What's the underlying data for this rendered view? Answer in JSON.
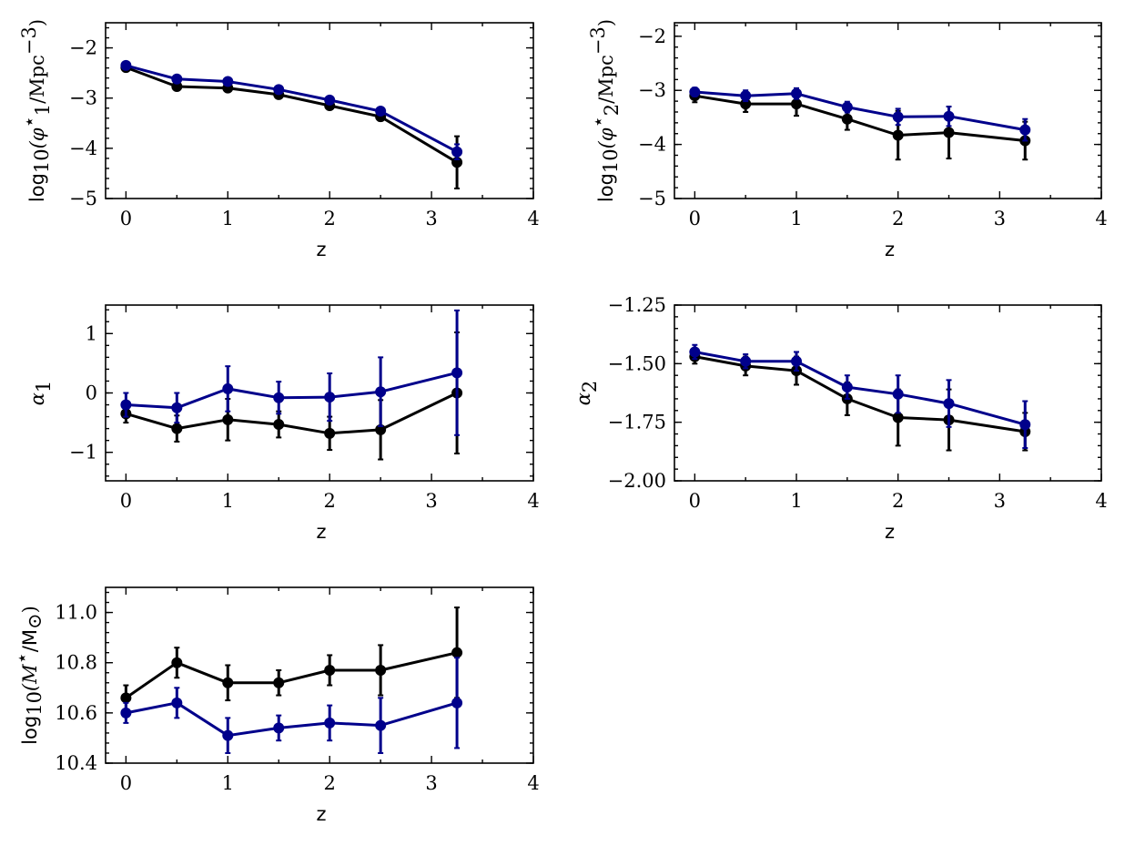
{
  "colors": {
    "series_black": "#000000",
    "series_blue": "#00008b"
  },
  "chart_data": [
    {
      "type": "line",
      "ylabel_parts": [
        "log",
        "10",
        "(φ",
        "⋆",
        "1",
        "/Mpc",
        "−3",
        ")"
      ],
      "xlabel": "z",
      "xlim": [
        -0.2,
        4
      ],
      "ylim": [
        -5,
        -1.5
      ],
      "xticks": [
        0,
        1,
        2,
        3,
        4
      ],
      "xtick_labels": [
        "0",
        "1",
        "2",
        "3",
        "4"
      ],
      "yticks": [
        -5,
        -4,
        -3,
        -2
      ],
      "ytick_labels": [
        "−5",
        "−4",
        "−3",
        "−2"
      ],
      "x": [
        0,
        0.5,
        1,
        1.5,
        2,
        2.5,
        3.25
      ],
      "series": [
        {
          "color": "#000000",
          "values": [
            -2.39,
            -2.77,
            -2.8,
            -2.93,
            -3.15,
            -3.37,
            -4.28
          ],
          "err": [
            0.06,
            0.05,
            0.05,
            0.05,
            0.07,
            0.08,
            0.52
          ]
        },
        {
          "color": "#00008b",
          "values": [
            -2.35,
            -2.62,
            -2.67,
            -2.83,
            -3.04,
            -3.26,
            -4.07
          ],
          "err": [
            0.05,
            0.05,
            0.05,
            0.05,
            0.06,
            0.07,
            0.15
          ]
        }
      ]
    },
    {
      "type": "line",
      "ylabel_parts": [
        "log",
        "10",
        "(φ",
        "⋆",
        "2",
        "/Mpc",
        "−3",
        ")"
      ],
      "xlabel": "z",
      "xlim": [
        -0.2,
        4
      ],
      "ylim": [
        -5,
        -1.75
      ],
      "xticks": [
        0,
        1,
        2,
        3,
        4
      ],
      "xtick_labels": [
        "0",
        "1",
        "2",
        "3",
        "4"
      ],
      "yticks": [
        -5,
        -4,
        -3,
        -2
      ],
      "ytick_labels": [
        "−5",
        "−4",
        "−3",
        "−2"
      ],
      "x": [
        0,
        0.5,
        1,
        1.5,
        2,
        2.5,
        3.25
      ],
      "series": [
        {
          "color": "#000000",
          "values": [
            -3.1,
            -3.25,
            -3.25,
            -3.53,
            -3.83,
            -3.78,
            -3.93
          ],
          "err": [
            0.12,
            0.15,
            0.22,
            0.2,
            0.45,
            0.48,
            0.35
          ]
        },
        {
          "color": "#00008b",
          "values": [
            -3.03,
            -3.1,
            -3.06,
            -3.31,
            -3.49,
            -3.48,
            -3.73
          ],
          "err": [
            0.08,
            0.1,
            0.1,
            0.1,
            0.15,
            0.18,
            0.2
          ]
        }
      ]
    },
    {
      "type": "line",
      "ylabel_parts": [
        "α",
        "1"
      ],
      "xlabel": "z",
      "xlim": [
        -0.2,
        4
      ],
      "ylim": [
        -1.48,
        1.48
      ],
      "xticks": [
        0,
        1,
        2,
        3,
        4
      ],
      "xtick_labels": [
        "0",
        "1",
        "2",
        "3",
        "4"
      ],
      "yticks": [
        -1,
        0,
        1
      ],
      "ytick_labels": [
        "−1",
        "0",
        "1"
      ],
      "x": [
        0,
        0.5,
        1,
        1.5,
        2,
        2.5,
        3.25
      ],
      "series": [
        {
          "color": "#000000",
          "values": [
            -0.35,
            -0.6,
            -0.45,
            -0.53,
            -0.68,
            -0.62,
            0.0
          ],
          "err": [
            0.15,
            0.22,
            0.35,
            0.22,
            0.28,
            0.5,
            1.02
          ]
        },
        {
          "color": "#00008b",
          "values": [
            -0.2,
            -0.25,
            0.07,
            -0.08,
            -0.07,
            0.02,
            0.34
          ],
          "err": [
            0.2,
            0.25,
            0.38,
            0.27,
            0.4,
            0.58,
            1.05
          ]
        }
      ]
    },
    {
      "type": "line",
      "ylabel_parts": [
        "α",
        "2"
      ],
      "xlabel": "z",
      "xlim": [
        -0.2,
        4
      ],
      "ylim": [
        -2.0,
        -1.25
      ],
      "xticks": [
        0,
        1,
        2,
        3,
        4
      ],
      "xtick_labels": [
        "0",
        "1",
        "2",
        "3",
        "4"
      ],
      "yticks": [
        -2.0,
        -1.75,
        -1.5,
        -1.25
      ],
      "ytick_labels": [
        "−2.00",
        "−1.75",
        "−1.50",
        "−1.25"
      ],
      "x": [
        0,
        0.5,
        1,
        1.5,
        2,
        2.5,
        3.25
      ],
      "series": [
        {
          "color": "#000000",
          "values": [
            -1.47,
            -1.51,
            -1.53,
            -1.65,
            -1.73,
            -1.74,
            -1.79
          ],
          "err": [
            0.03,
            0.04,
            0.06,
            0.07,
            0.12,
            0.13,
            0.08
          ]
        },
        {
          "color": "#00008b",
          "values": [
            -1.45,
            -1.49,
            -1.49,
            -1.6,
            -1.63,
            -1.67,
            -1.76
          ],
          "err": [
            0.03,
            0.03,
            0.04,
            0.05,
            0.08,
            0.1,
            0.1
          ]
        }
      ]
    },
    {
      "type": "line",
      "ylabel_parts": [
        "log",
        "10",
        "(M",
        "⋆",
        "/M",
        "⊙",
        ")"
      ],
      "xlabel": "z",
      "xlim": [
        -0.2,
        4
      ],
      "ylim": [
        10.4,
        11.1
      ],
      "xticks": [
        0,
        1,
        2,
        3,
        4
      ],
      "xtick_labels": [
        "0",
        "1",
        "2",
        "3",
        "4"
      ],
      "yticks": [
        10.4,
        10.6,
        10.8,
        11.0
      ],
      "ytick_labels": [
        "10.4",
        "10.6",
        "10.8",
        "11.0"
      ],
      "x": [
        0,
        0.5,
        1,
        1.5,
        2,
        2.5,
        3.25
      ],
      "series": [
        {
          "color": "#000000",
          "values": [
            10.66,
            10.8,
            10.72,
            10.72,
            10.77,
            10.77,
            10.84
          ],
          "err": [
            0.05,
            0.06,
            0.07,
            0.05,
            0.06,
            0.1,
            0.18
          ]
        },
        {
          "color": "#00008b",
          "values": [
            10.6,
            10.64,
            10.51,
            10.54,
            10.56,
            10.55,
            10.64
          ],
          "err": [
            0.04,
            0.06,
            0.07,
            0.05,
            0.07,
            0.11,
            0.18
          ]
        }
      ]
    }
  ]
}
